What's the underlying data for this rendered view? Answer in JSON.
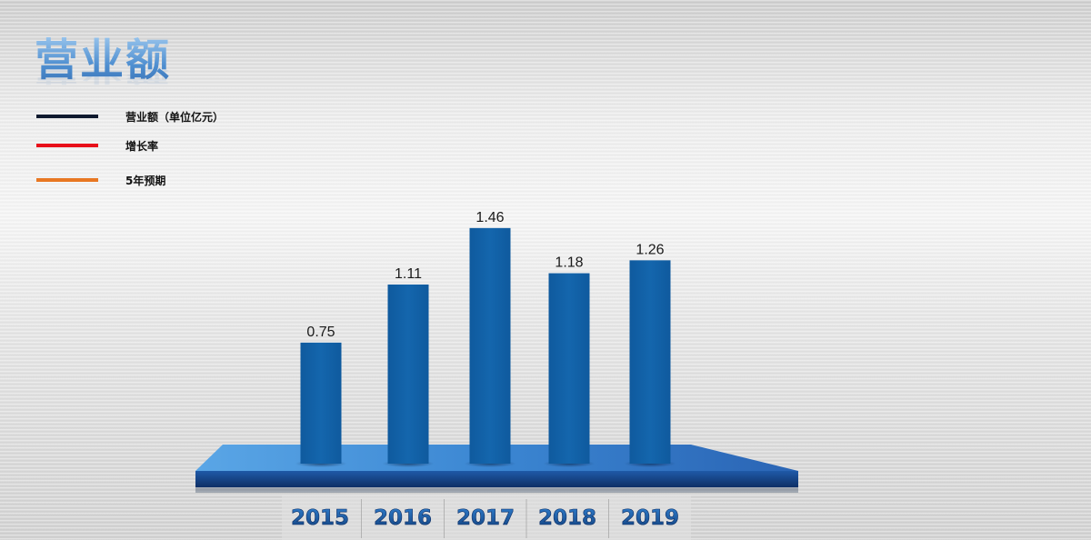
{
  "title": "营业额",
  "legend": [
    {
      "label": "营业额（单位亿元）",
      "color": "#0f1a2e"
    },
    {
      "label": "增长率",
      "color": "#e8101a"
    },
    {
      "label": "5年预期",
      "color": "#e87722"
    }
  ],
  "colors": {
    "bar": "#1060a6",
    "platform": "#3f8ad6",
    "platform_edge": "#1c4f95",
    "year_label": "#1b5ea8"
  },
  "chart_data": {
    "type": "bar",
    "categories": [
      "2015",
      "2016",
      "2017",
      "2018",
      "2019"
    ],
    "values": [
      0.75,
      1.11,
      1.46,
      1.18,
      1.26
    ],
    "data_labels": [
      "0.75",
      "1.11",
      "1.46",
      "1.18",
      "1.26"
    ],
    "title": "",
    "xlabel": "",
    "ylabel": "",
    "grid": false
  }
}
